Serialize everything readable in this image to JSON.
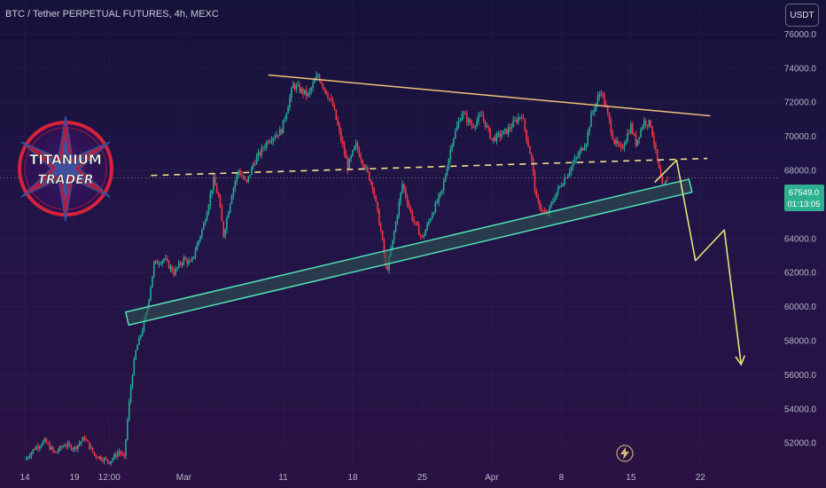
{
  "header": {
    "symbol_title": "BTC / Tether PERPETUAL FUTURES, 4h, MEXC",
    "currency_button": "USDT"
  },
  "logo": {
    "line1": "TITANIUM",
    "line2": "TRADER"
  },
  "price_tag": {
    "price": "67549.0",
    "countdown": "01:13:05"
  },
  "colors": {
    "up": "#22ab94",
    "down": "#f23645",
    "resistance": "#f0c27a",
    "neckline": "#f4e08a",
    "channel_fill": "#2f5a52",
    "channel_stroke": "#4fe0b6",
    "projection": "#e6e27a",
    "price_tag": "#2db08f"
  },
  "chart_data": {
    "type": "candlestick",
    "y_axis": {
      "min": 50500,
      "max": 78000,
      "ticks": [
        52000,
        54000,
        56000,
        58000,
        60000,
        62000,
        64000,
        66000,
        68000,
        70000,
        72000,
        74000,
        76000
      ],
      "tick_labels": [
        "52000.0",
        "54000.0",
        "56000.0",
        "58000.0",
        "60000.0",
        "62000.0",
        "64000.0",
        "66000.0",
        "68000.0",
        "70000.0",
        "72000.0",
        "74000.0",
        "76000.0"
      ]
    },
    "x_axis": {
      "ticks": [
        {
          "label": "14",
          "day": 0
        },
        {
          "label": "19",
          "day": 5
        },
        {
          "label": "12:00",
          "day": 8.5
        },
        {
          "label": "Mar",
          "day": 16
        },
        {
          "label": "11",
          "day": 26
        },
        {
          "label": "18",
          "day": 33
        },
        {
          "label": "25",
          "day": 40
        },
        {
          "label": "Apr",
          "day": 47
        },
        {
          "label": "8",
          "day": 54
        },
        {
          "label": "15",
          "day": 61
        },
        {
          "label": "22",
          "day": 68
        }
      ],
      "day_min": -2.5,
      "day_max": 76
    },
    "price_path": [
      [
        0,
        51000
      ],
      [
        1,
        51700
      ],
      [
        2,
        52100
      ],
      [
        3,
        51400
      ],
      [
        4,
        51900
      ],
      [
        5,
        51700
      ],
      [
        6,
        52300
      ],
      [
        7,
        51300
      ],
      [
        8.5,
        50900
      ],
      [
        9.5,
        51500
      ],
      [
        10,
        51100
      ],
      [
        10.4,
        53800
      ],
      [
        10.8,
        56000
      ],
      [
        11.2,
        57500
      ],
      [
        11.8,
        58600
      ],
      [
        12.3,
        59800
      ],
      [
        13,
        62500
      ],
      [
        14,
        62800
      ],
      [
        15,
        62000
      ],
      [
        16,
        62800
      ],
      [
        16.7,
        62500
      ],
      [
        18,
        64800
      ],
      [
        19,
        67400
      ],
      [
        19.5,
        66400
      ],
      [
        20,
        64200
      ],
      [
        20.8,
        66600
      ],
      [
        21.5,
        68000
      ],
      [
        22.3,
        67200
      ],
      [
        23,
        68400
      ],
      [
        24.5,
        69800
      ],
      [
        25.8,
        70300
      ],
      [
        27,
        73000
      ],
      [
        28.5,
        72400
      ],
      [
        29.5,
        73600
      ],
      [
        31,
        71800
      ],
      [
        32.5,
        68200
      ],
      [
        33.3,
        69500
      ],
      [
        35,
        67100
      ],
      [
        35.9,
        64200
      ],
      [
        36.4,
        62000
      ],
      [
        37,
        63800
      ],
      [
        38,
        67200
      ],
      [
        39,
        65200
      ],
      [
        40,
        64000
      ],
      [
        41,
        65500
      ],
      [
        42,
        66800
      ],
      [
        43,
        69700
      ],
      [
        44,
        71400
      ],
      [
        45,
        70600
      ],
      [
        46,
        71200
      ],
      [
        47,
        69800
      ],
      [
        48.5,
        70300
      ],
      [
        50,
        71300
      ],
      [
        51,
        68600
      ],
      [
        51.5,
        66200
      ],
      [
        52.5,
        65300
      ],
      [
        53.5,
        66700
      ],
      [
        55,
        68200
      ],
      [
        56.5,
        69700
      ],
      [
        57,
        71200
      ],
      [
        58,
        72700
      ],
      [
        58.6,
        71400
      ],
      [
        59.3,
        69700
      ],
      [
        60,
        69200
      ],
      [
        61,
        70600
      ],
      [
        61.5,
        69600
      ],
      [
        62.3,
        70900
      ],
      [
        63,
        70700
      ],
      [
        63.6,
        68700
      ],
      [
        64.2,
        66900
      ],
      [
        64.7,
        67549
      ]
    ],
    "annotations": {
      "resistance_line": [
        [
          24.5,
          73600
        ],
        [
          69,
          71200
        ]
      ],
      "neckline_dashed": [
        [
          12.7,
          67700
        ],
        [
          68.7,
          68700
        ]
      ],
      "support_channel": [
        [
          10.3,
          59300
        ],
        [
          67,
          67100
        ]
      ],
      "projection_path": [
        [
          63.4,
          67300
        ],
        [
          65.6,
          68600
        ],
        [
          67.5,
          62700
        ],
        [
          70.4,
          64500
        ],
        [
          72.1,
          56600
        ]
      ]
    }
  }
}
